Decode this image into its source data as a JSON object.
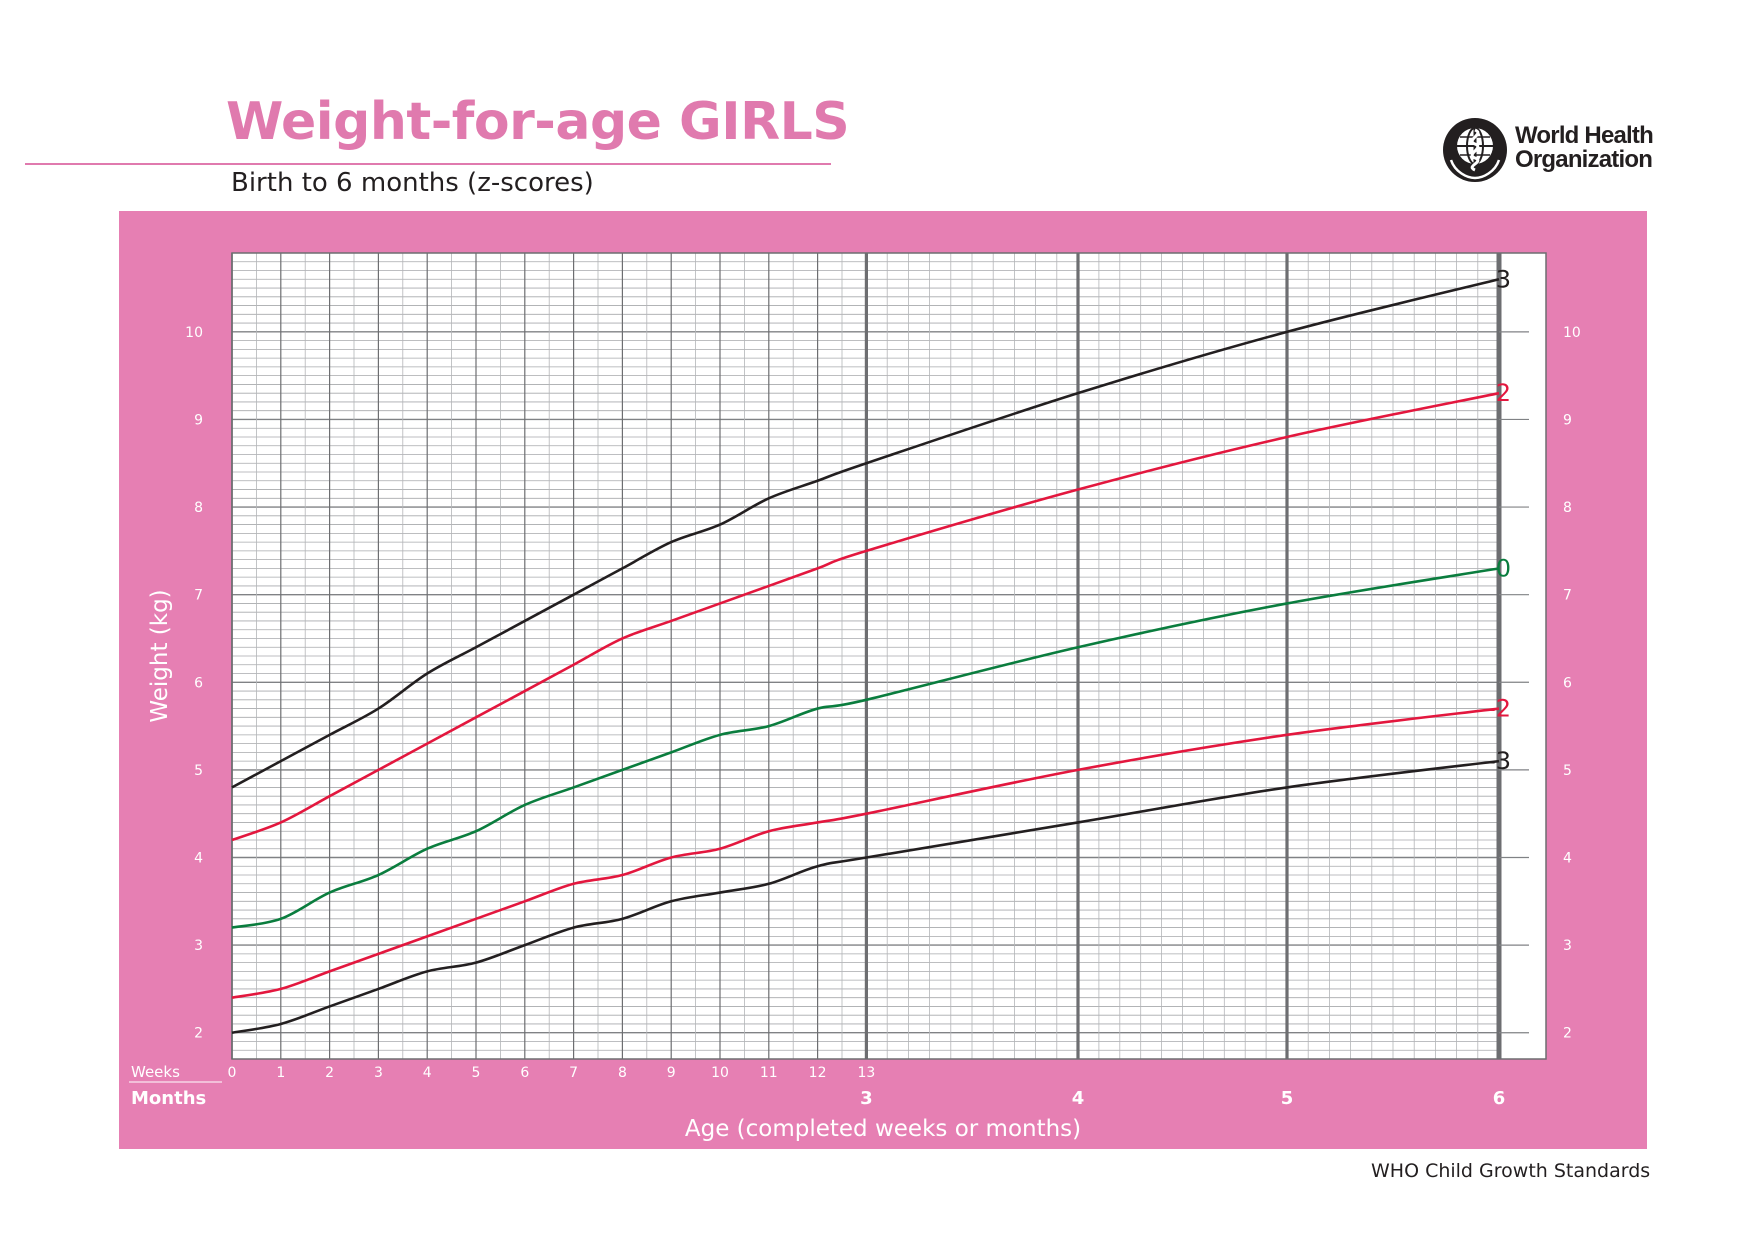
{
  "header": {
    "title": "Weight-for-age GIRLS",
    "subtitle": "Birth to 6 months (z-scores)",
    "org_line1": "World Health",
    "org_line2": "Organization"
  },
  "footer": {
    "source": "WHO Child Growth Standards"
  },
  "colors": {
    "pink": "#e67fb3",
    "title_pink": "#e07aae",
    "black_curve": "#231f20",
    "red_curve": "#e3173e",
    "green_curve": "#0a7d3e"
  },
  "chart_data": {
    "type": "line",
    "ylabel": "Weight (kg)",
    "xlabel": "Age (completed weeks or months)",
    "x_row_labels": {
      "weeks": "Weeks",
      "months": "Months"
    },
    "weeks_ticks": [
      "0",
      "1",
      "2",
      "3",
      "4",
      "5",
      "6",
      "7",
      "8",
      "9",
      "10",
      "11",
      "12",
      "13"
    ],
    "months_ticks": [
      "3",
      "4",
      "5",
      "6"
    ],
    "y_ticks": [
      "2",
      "3",
      "4",
      "5",
      "6",
      "7",
      "8",
      "9",
      "10"
    ],
    "ylim": [
      1.7,
      10.9
    ],
    "grid": true,
    "series": [
      {
        "name": "3",
        "color": "#231f20",
        "x": [
          0,
          1,
          2,
          3,
          4,
          5,
          6,
          7,
          8,
          9,
          10,
          11,
          12,
          13,
          17.4,
          21.7,
          26.1
        ],
        "values": [
          4.8,
          5.1,
          5.4,
          5.7,
          6.1,
          6.4,
          6.7,
          7.0,
          7.3,
          7.6,
          7.8,
          8.1,
          8.3,
          8.5,
          9.3,
          10.0,
          10.6
        ]
      },
      {
        "name": "2",
        "color": "#e3173e",
        "x": [
          0,
          1,
          2,
          3,
          4,
          5,
          6,
          7,
          8,
          9,
          10,
          11,
          12,
          13,
          17.4,
          21.7,
          26.1
        ],
        "values": [
          4.2,
          4.4,
          4.7,
          5.0,
          5.3,
          5.6,
          5.9,
          6.2,
          6.5,
          6.7,
          6.9,
          7.1,
          7.3,
          7.5,
          8.2,
          8.8,
          9.3
        ]
      },
      {
        "name": "0",
        "color": "#0a7d3e",
        "x": [
          0,
          1,
          2,
          3,
          4,
          5,
          6,
          7,
          8,
          9,
          10,
          11,
          12,
          13,
          17.4,
          21.7,
          26.1
        ],
        "values": [
          3.2,
          3.3,
          3.6,
          3.8,
          4.1,
          4.3,
          4.6,
          4.8,
          5.0,
          5.2,
          5.4,
          5.5,
          5.7,
          5.8,
          6.4,
          6.9,
          7.3
        ]
      },
      {
        "name": "-2",
        "color": "#e3173e",
        "x": [
          0,
          1,
          2,
          3,
          4,
          5,
          6,
          7,
          8,
          9,
          10,
          11,
          12,
          13,
          17.4,
          21.7,
          26.1
        ],
        "values": [
          2.4,
          2.5,
          2.7,
          2.9,
          3.1,
          3.3,
          3.5,
          3.7,
          3.8,
          4.0,
          4.1,
          4.3,
          4.4,
          4.5,
          5.0,
          5.4,
          5.7
        ]
      },
      {
        "name": "-3",
        "color": "#231f20",
        "x": [
          0,
          1,
          2,
          3,
          4,
          5,
          6,
          7,
          8,
          9,
          10,
          11,
          12,
          13,
          17.4,
          21.7,
          26.1
        ],
        "values": [
          2.0,
          2.1,
          2.3,
          2.5,
          2.7,
          2.8,
          3.0,
          3.2,
          3.3,
          3.5,
          3.6,
          3.7,
          3.9,
          4.0,
          4.4,
          4.8,
          5.1
        ]
      }
    ]
  }
}
